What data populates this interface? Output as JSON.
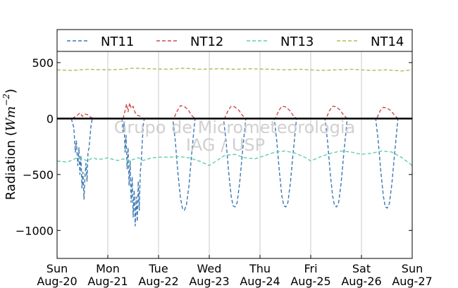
{
  "chart_data": {
    "type": "line",
    "ylabel": "Radiation (Wm^-2)",
    "ylabel_main": "Radiation (",
    "ylabel_unit": "Wm",
    "ylabel_exp": "−2",
    "ylabel_close": ")",
    "ylim": [
      -1250,
      600
    ],
    "yticks": [
      500,
      0,
      -500,
      -1000
    ],
    "ytick_labels": [
      "500",
      "0",
      "−500",
      "−1000"
    ],
    "xlim": [
      0,
      7
    ],
    "xticks": [
      {
        "x": 0,
        "day": "Sun",
        "date": "Aug-20"
      },
      {
        "x": 1,
        "day": "Mon",
        "date": "Aug-21"
      },
      {
        "x": 2,
        "day": "Tue",
        "date": "Aug-22"
      },
      {
        "x": 3,
        "day": "Wed",
        "date": "Aug-23"
      },
      {
        "x": 4,
        "day": "Thu",
        "date": "Aug-24"
      },
      {
        "x": 5,
        "day": "Fri",
        "date": "Aug-25"
      },
      {
        "x": 6,
        "day": "Sat",
        "date": "Aug-26"
      },
      {
        "x": 7,
        "day": "Sun",
        "date": "Aug-27"
      }
    ],
    "grid": "vertical",
    "legend_position": "top",
    "zero_line": true,
    "watermark": [
      "Grupo de Micrometeorologia",
      "IAG / USP"
    ],
    "series": [
      {
        "name": "NT11",
        "color": "#3a78b5",
        "points": [
          [
            0.28,
            0
          ],
          [
            0.33,
            -80
          ],
          [
            0.36,
            -300
          ],
          [
            0.38,
            -200
          ],
          [
            0.41,
            -420
          ],
          [
            0.43,
            -260
          ],
          [
            0.45,
            -500
          ],
          [
            0.47,
            -330
          ],
          [
            0.49,
            -620
          ],
          [
            0.51,
            -480
          ],
          [
            0.53,
            -720
          ],
          [
            0.55,
            -520
          ],
          [
            0.57,
            -400
          ],
          [
            0.59,
            -560
          ],
          [
            0.61,
            -300
          ],
          [
            0.63,
            -260
          ],
          [
            0.65,
            -160
          ],
          [
            0.67,
            -60
          ],
          [
            0.69,
            -10
          ],
          [
            0.7,
            0
          ],
          [
            1.28,
            0
          ],
          [
            1.3,
            -120
          ],
          [
            1.32,
            -40
          ],
          [
            1.34,
            -300
          ],
          [
            1.36,
            -150
          ],
          [
            1.38,
            -450
          ],
          [
            1.4,
            -260
          ],
          [
            1.42,
            -600
          ],
          [
            1.44,
            -380
          ],
          [
            1.46,
            -750
          ],
          [
            1.48,
            -520
          ],
          [
            1.5,
            -880
          ],
          [
            1.52,
            -640
          ],
          [
            1.54,
            -960
          ],
          [
            1.56,
            -700
          ],
          [
            1.58,
            -920
          ],
          [
            1.6,
            -560
          ],
          [
            1.62,
            -820
          ],
          [
            1.64,
            -480
          ],
          [
            1.66,
            -380
          ],
          [
            1.68,
            -200
          ],
          [
            1.7,
            -60
          ],
          [
            1.72,
            0
          ],
          [
            2.28,
            0
          ],
          [
            2.33,
            -200
          ],
          [
            2.38,
            -480
          ],
          [
            2.43,
            -700
          ],
          [
            2.47,
            -800
          ],
          [
            2.51,
            -820
          ],
          [
            2.55,
            -770
          ],
          [
            2.6,
            -600
          ],
          [
            2.65,
            -330
          ],
          [
            2.7,
            -90
          ],
          [
            2.72,
            0
          ],
          [
            3.28,
            0
          ],
          [
            3.33,
            -200
          ],
          [
            3.38,
            -470
          ],
          [
            3.43,
            -690
          ],
          [
            3.47,
            -780
          ],
          [
            3.51,
            -790
          ],
          [
            3.55,
            -750
          ],
          [
            3.6,
            -570
          ],
          [
            3.65,
            -320
          ],
          [
            3.7,
            -90
          ],
          [
            3.72,
            0
          ],
          [
            4.28,
            0
          ],
          [
            4.33,
            -200
          ],
          [
            4.38,
            -470
          ],
          [
            4.43,
            -690
          ],
          [
            4.47,
            -780
          ],
          [
            4.51,
            -790
          ],
          [
            4.55,
            -750
          ],
          [
            4.6,
            -570
          ],
          [
            4.65,
            -320
          ],
          [
            4.7,
            -90
          ],
          [
            4.72,
            0
          ],
          [
            5.28,
            0
          ],
          [
            5.33,
            -200
          ],
          [
            5.38,
            -470
          ],
          [
            5.43,
            -690
          ],
          [
            5.47,
            -780
          ],
          [
            5.51,
            -790
          ],
          [
            5.55,
            -750
          ],
          [
            5.6,
            -570
          ],
          [
            5.65,
            -320
          ],
          [
            5.7,
            -90
          ],
          [
            5.72,
            0
          ],
          [
            6.28,
            0
          ],
          [
            6.33,
            -200
          ],
          [
            6.38,
            -470
          ],
          [
            6.43,
            -690
          ],
          [
            6.47,
            -790
          ],
          [
            6.51,
            -800
          ],
          [
            6.55,
            -760
          ],
          [
            6.6,
            -580
          ],
          [
            6.65,
            -330
          ],
          [
            6.7,
            -90
          ],
          [
            6.72,
            0
          ]
        ]
      },
      {
        "name": "NT12",
        "color": "#d04a4a",
        "points": [
          [
            0.3,
            0
          ],
          [
            0.4,
            30
          ],
          [
            0.45,
            50
          ],
          [
            0.5,
            20
          ],
          [
            0.55,
            40
          ],
          [
            0.6,
            35
          ],
          [
            0.67,
            10
          ],
          [
            0.72,
            0
          ],
          [
            1.3,
            0
          ],
          [
            1.34,
            70
          ],
          [
            1.37,
            130
          ],
          [
            1.4,
            60
          ],
          [
            1.43,
            140
          ],
          [
            1.46,
            90
          ],
          [
            1.5,
            110
          ],
          [
            1.54,
            50
          ],
          [
            1.58,
            30
          ],
          [
            1.64,
            20
          ],
          [
            1.7,
            0
          ],
          [
            2.3,
            0
          ],
          [
            2.37,
            70
          ],
          [
            2.43,
            115
          ],
          [
            2.5,
            110
          ],
          [
            2.58,
            80
          ],
          [
            2.65,
            30
          ],
          [
            2.72,
            0
          ],
          [
            3.3,
            0
          ],
          [
            3.37,
            70
          ],
          [
            3.43,
            110
          ],
          [
            3.5,
            105
          ],
          [
            3.58,
            75
          ],
          [
            3.65,
            30
          ],
          [
            3.72,
            0
          ],
          [
            4.3,
            0
          ],
          [
            4.37,
            70
          ],
          [
            4.43,
            110
          ],
          [
            4.5,
            105
          ],
          [
            4.58,
            75
          ],
          [
            4.65,
            30
          ],
          [
            4.72,
            0
          ],
          [
            5.3,
            0
          ],
          [
            5.37,
            70
          ],
          [
            5.43,
            110
          ],
          [
            5.5,
            105
          ],
          [
            5.58,
            75
          ],
          [
            5.65,
            30
          ],
          [
            5.72,
            0
          ],
          [
            6.3,
            0
          ],
          [
            6.37,
            70
          ],
          [
            6.43,
            100
          ],
          [
            6.5,
            95
          ],
          [
            6.58,
            70
          ],
          [
            6.65,
            30
          ],
          [
            6.72,
            0
          ]
        ]
      },
      {
        "name": "NT13",
        "color": "#5fd0a8",
        "points": [
          [
            0.0,
            -380
          ],
          [
            0.1,
            -385
          ],
          [
            0.2,
            -390
          ],
          [
            0.3,
            -370
          ],
          [
            0.4,
            -350
          ],
          [
            0.5,
            -360
          ],
          [
            0.6,
            -380
          ],
          [
            0.7,
            -350
          ],
          [
            0.8,
            -365
          ],
          [
            0.9,
            -360
          ],
          [
            1.0,
            -350
          ],
          [
            1.1,
            -365
          ],
          [
            1.2,
            -375
          ],
          [
            1.3,
            -360
          ],
          [
            1.4,
            -380
          ],
          [
            1.5,
            -365
          ],
          [
            1.6,
            -350
          ],
          [
            1.7,
            -375
          ],
          [
            1.8,
            -360
          ],
          [
            1.9,
            -350
          ],
          [
            2.0,
            -345
          ],
          [
            2.2,
            -345
          ],
          [
            2.4,
            -340
          ],
          [
            2.6,
            -350
          ],
          [
            2.8,
            -380
          ],
          [
            3.0,
            -420
          ],
          [
            3.1,
            -390
          ],
          [
            3.3,
            -330
          ],
          [
            3.5,
            -320
          ],
          [
            3.7,
            -350
          ],
          [
            3.9,
            -360
          ],
          [
            4.1,
            -330
          ],
          [
            4.3,
            -300
          ],
          [
            4.5,
            -290
          ],
          [
            4.7,
            -310
          ],
          [
            4.9,
            -350
          ],
          [
            5.0,
            -380
          ],
          [
            5.2,
            -340
          ],
          [
            5.4,
            -310
          ],
          [
            5.6,
            -290
          ],
          [
            5.8,
            -300
          ],
          [
            6.0,
            -320
          ],
          [
            6.2,
            -310
          ],
          [
            6.4,
            -290
          ],
          [
            6.6,
            -300
          ],
          [
            6.8,
            -350
          ],
          [
            7.0,
            -420
          ]
        ]
      },
      {
        "name": "NT14",
        "color": "#b5b85a",
        "points": [
          [
            0.0,
            435
          ],
          [
            0.3,
            430
          ],
          [
            0.6,
            440
          ],
          [
            1.0,
            435
          ],
          [
            1.3,
            440
          ],
          [
            1.5,
            450
          ],
          [
            1.8,
            445
          ],
          [
            2.2,
            440
          ],
          [
            2.5,
            450
          ],
          [
            2.8,
            440
          ],
          [
            3.2,
            445
          ],
          [
            3.5,
            440
          ],
          [
            3.8,
            445
          ],
          [
            4.2,
            440
          ],
          [
            4.5,
            435
          ],
          [
            4.8,
            440
          ],
          [
            5.2,
            430
          ],
          [
            5.5,
            435
          ],
          [
            5.8,
            440
          ],
          [
            6.2,
            430
          ],
          [
            6.5,
            435
          ],
          [
            6.8,
            425
          ],
          [
            7.0,
            435
          ]
        ]
      }
    ]
  }
}
